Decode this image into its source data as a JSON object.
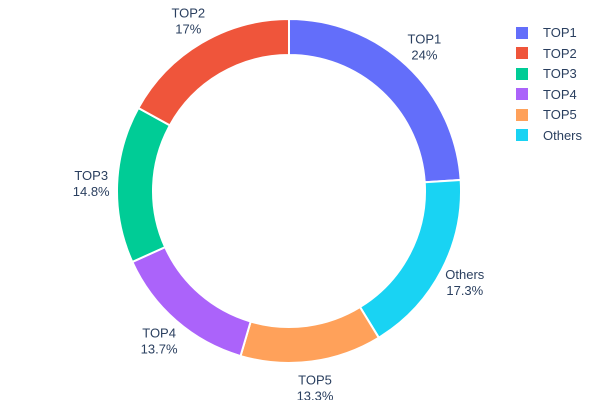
{
  "chart_data": {
    "type": "pie",
    "subtype": "donut",
    "hole_ratio": 0.79,
    "label_position": "outside",
    "title": "",
    "background_color": "#ffffff",
    "text_color": "#2a3f5f",
    "slice_border_color": "#ffffff",
    "slices": [
      {
        "label": "TOP1",
        "value": 24,
        "pct_label": "24%",
        "color": "#636EFA"
      },
      {
        "label": "TOP2",
        "value": 17,
        "pct_label": "17%",
        "color": "#EF553B"
      },
      {
        "label": "TOP3",
        "value": 14.8,
        "pct_label": "14.8%",
        "color": "#00CC96"
      },
      {
        "label": "TOP4",
        "value": 13.7,
        "pct_label": "13.7%",
        "color": "#AB63FA"
      },
      {
        "label": "TOP5",
        "value": 13.3,
        "pct_label": "13.3%",
        "color": "#FFA15A"
      },
      {
        "label": "Others",
        "value": 17.3,
        "pct_label": "17.3%",
        "color": "#19D3F3"
      }
    ],
    "clockwise_order_from_top": [
      "TOP1",
      "Others",
      "TOP5",
      "TOP4",
      "TOP3",
      "TOP2"
    ],
    "legend": {
      "position": "top-right",
      "items": [
        "TOP1",
        "TOP2",
        "TOP3",
        "TOP4",
        "TOP5",
        "Others"
      ]
    }
  }
}
